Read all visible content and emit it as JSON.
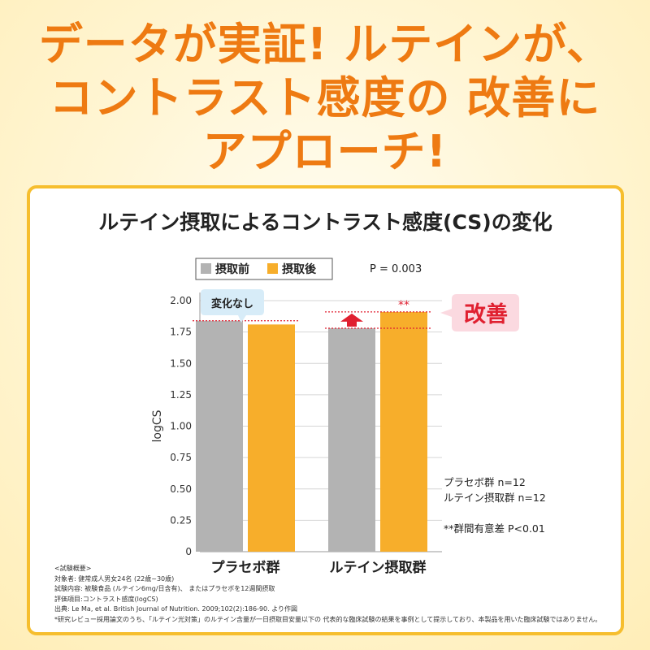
{
  "headline": {
    "line1": "データが実証! ルテインが、",
    "line2": "コントラスト感度の 改善に",
    "line3": "アプローチ!"
  },
  "colors": {
    "accent": "#ee7a12",
    "border": "#f6be2e",
    "before": "#b3b3b3",
    "after": "#f7ae2b",
    "improve": "#e02030"
  },
  "chart_data": {
    "type": "bar",
    "title": "ルテイン摂取によるコントラスト感度(CS)の変化",
    "ylabel": "logCS",
    "xlabel": "",
    "ylim": [
      0,
      2.0
    ],
    "yticks": [
      "0",
      "0.25",
      "0.50",
      "0.75",
      "1.00",
      "1.25",
      "1.50",
      "1.75",
      "2.00"
    ],
    "categories": [
      "プラセボ群",
      "ルテイン摂取群"
    ],
    "series": [
      {
        "name": "摂取前",
        "values": [
          1.84,
          1.78
        ]
      },
      {
        "name": "摂取後",
        "values": [
          1.81,
          1.91
        ]
      }
    ],
    "legend_position": "top-left",
    "grid": true,
    "p_value": "P = 0.003",
    "significance_mark": "**",
    "annotations": {
      "no_change": "変化なし",
      "improved": "改善"
    },
    "group_sizes": [
      "プラセボ群 n=12",
      "ルテイン摂取群 n=12"
    ],
    "significance_note": "**群間有意差 P<0.01"
  },
  "notes": [
    "<試験概要>",
    "対象者: 健常成人男女24名 (22歳~30歳)",
    "試験内容: 被験食品 (ルテイン6mg/日含有)、 またはプラセボを12週間摂取",
    "評価項目:コントラスト感度(logCS)",
    "出典: Le Ma, et al. British Journal of Nutrition. 2009;102(2):186-90. より作図",
    "*研究レビュー採用論文のうち、「ルテイン光対策」のルテイン含量が一日摂取目安量以下の 代表的な臨床試験の結果を事例として提示しており、本製品を用いた臨床試験ではありません。"
  ]
}
